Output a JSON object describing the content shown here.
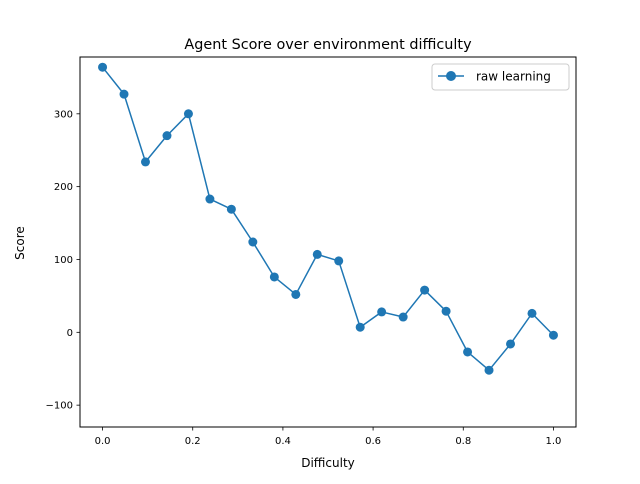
{
  "chart_data": {
    "type": "line",
    "title": "Agent Score over environment difficulty",
    "xlabel": "Difficulty",
    "ylabel": "Score",
    "xlim": [
      -0.05,
      1.05
    ],
    "ylim": [
      -130,
      378
    ],
    "xticks": [
      0.0,
      0.2,
      0.4,
      0.6,
      0.8,
      1.0
    ],
    "xtick_labels": [
      "0.0",
      "0.2",
      "0.4",
      "0.6",
      "0.8",
      "1.0"
    ],
    "yticks": [
      -100,
      0,
      100,
      200,
      300
    ],
    "ytick_labels": [
      "−100",
      "0",
      "100",
      "200",
      "300"
    ],
    "grid": false,
    "legend_position": "top-right",
    "series": [
      {
        "name": "raw learning",
        "color": "#1f77b4",
        "marker": "circle",
        "x": [
          0.0,
          0.0476,
          0.0952,
          0.1429,
          0.1905,
          0.2381,
          0.2857,
          0.3333,
          0.381,
          0.4286,
          0.4762,
          0.5238,
          0.5714,
          0.619,
          0.6667,
          0.7143,
          0.7619,
          0.8095,
          0.8571,
          0.9048,
          0.9524,
          1.0
        ],
        "y": [
          364,
          327,
          234,
          270,
          300,
          183,
          169,
          124,
          76,
          52,
          107,
          98,
          7,
          28,
          21,
          58,
          29,
          -27,
          -52,
          -16,
          26,
          -4
        ]
      }
    ]
  }
}
